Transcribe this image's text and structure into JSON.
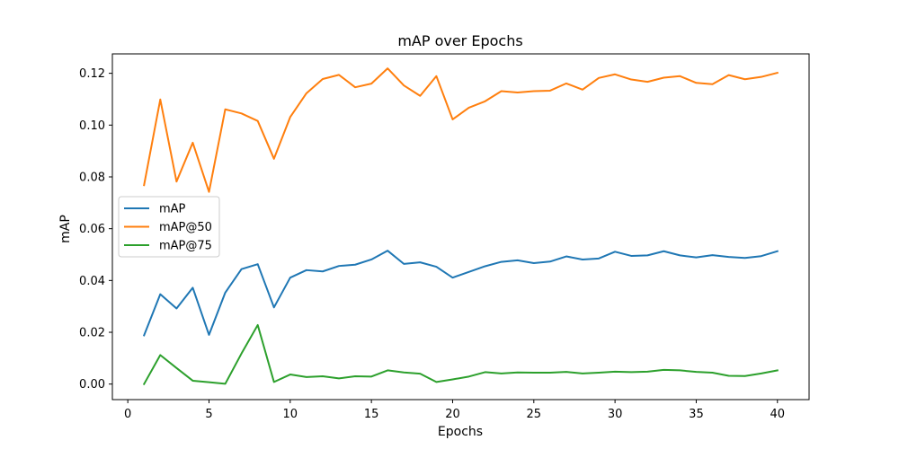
{
  "chart_data": {
    "type": "line",
    "title": "mAP over Epochs",
    "xlabel": "Epochs",
    "ylabel": "mAP",
    "xlim": [
      -0.95,
      41.95
    ],
    "ylim": [
      -0.006,
      0.1275
    ],
    "x_ticks": [
      0,
      5,
      10,
      15,
      20,
      25,
      30,
      35,
      40
    ],
    "y_ticks": [
      0.0,
      0.02,
      0.04,
      0.06,
      0.08,
      0.1,
      0.12
    ],
    "y_tick_labels": [
      "0.00",
      "0.02",
      "0.04",
      "0.06",
      "0.08",
      "0.10",
      "0.12"
    ],
    "grid": false,
    "legend_position": "center-left",
    "x": [
      1,
      2,
      3,
      4,
      5,
      6,
      7,
      8,
      9,
      10,
      11,
      12,
      13,
      14,
      15,
      16,
      17,
      18,
      19,
      20,
      21,
      22,
      23,
      24,
      25,
      26,
      27,
      28,
      29,
      30,
      31,
      32,
      33,
      34,
      35,
      36,
      37,
      38,
      39,
      40
    ],
    "series": [
      {
        "name": "mAP",
        "color": "#1f77b4",
        "values": [
          0.0188,
          0.0347,
          0.0292,
          0.0372,
          0.019,
          0.0353,
          0.0444,
          0.0463,
          0.0296,
          0.0411,
          0.044,
          0.0435,
          0.0456,
          0.0461,
          0.0481,
          0.0515,
          0.0464,
          0.047,
          0.0453,
          0.0411,
          0.0433,
          0.0455,
          0.0472,
          0.0478,
          0.0467,
          0.0473,
          0.0493,
          0.0481,
          0.0485,
          0.0511,
          0.0495,
          0.0497,
          0.0513,
          0.0497,
          0.0489,
          0.0498,
          0.0491,
          0.0487,
          0.0494,
          0.0513
        ]
      },
      {
        "name": "mAP@50",
        "color": "#ff7f0e",
        "values": [
          0.0768,
          0.1099,
          0.0782,
          0.0932,
          0.0742,
          0.1061,
          0.1045,
          0.1016,
          0.087,
          0.1031,
          0.1123,
          0.1178,
          0.1194,
          0.1146,
          0.116,
          0.1219,
          0.1153,
          0.1113,
          0.1189,
          0.1022,
          0.1067,
          0.1092,
          0.1131,
          0.1126,
          0.1131,
          0.1133,
          0.1161,
          0.1137,
          0.1182,
          0.1196,
          0.1176,
          0.1167,
          0.1183,
          0.1189,
          0.1163,
          0.1158,
          0.1193,
          0.1177,
          0.1186,
          0.1202
        ]
      },
      {
        "name": "mAP@75",
        "color": "#2ca02c",
        "values": [
          0.0,
          0.0112,
          0.0062,
          0.0013,
          0.0007,
          0.0001,
          0.0118,
          0.0228,
          0.0008,
          0.0037,
          0.0027,
          0.003,
          0.0022,
          0.003,
          0.0029,
          0.0053,
          0.0045,
          0.004,
          0.0008,
          0.0018,
          0.0029,
          0.0046,
          0.0041,
          0.0045,
          0.0044,
          0.0044,
          0.0047,
          0.0041,
          0.0044,
          0.0048,
          0.0046,
          0.0048,
          0.0055,
          0.0053,
          0.0047,
          0.0044,
          0.0032,
          0.0031,
          0.0041,
          0.0053
        ]
      }
    ]
  }
}
